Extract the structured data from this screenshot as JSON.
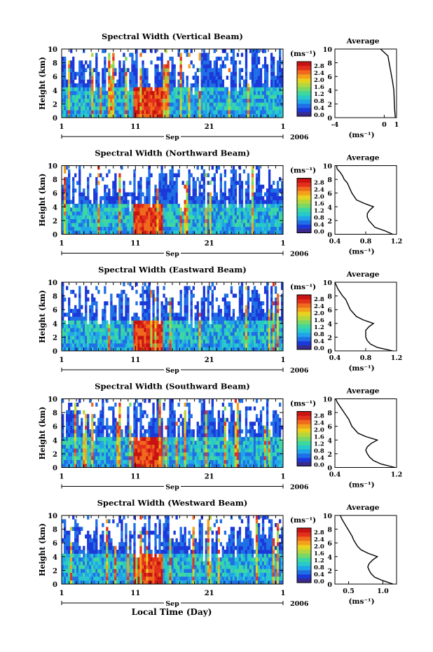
{
  "figure": {
    "xlabel_bottom": "Local Time (Day)"
  },
  "colorbar": {
    "unit_label": "(ms⁻¹)",
    "colors": [
      "#3a2a8c",
      "#1b39d8",
      "#1f6fe6",
      "#21a4e8",
      "#28c9c9",
      "#3ed7a0",
      "#7ad867",
      "#b6d73c",
      "#e8d21f",
      "#f3a11d",
      "#ef6a1d",
      "#e2301d",
      "#c81313"
    ]
  },
  "panels": [
    {
      "title": "Spectral Width (Vertical Beam)",
      "ylabel": "Height (km)",
      "month": "Sep",
      "year": "2006",
      "colorbar_ticks": [
        "0.0",
        "0.4",
        "0.8",
        "1.2",
        "1.6",
        "2.0",
        "2.4",
        "2.8"
      ],
      "avg": {
        "title": "Average",
        "xlabel": "(ms⁻¹)",
        "xticks": [
          "-4",
          "0",
          "1"
        ],
        "xmin": -4,
        "xmax": 1,
        "heights": [
          0,
          1,
          2,
          3,
          4,
          5,
          6,
          7,
          8,
          9,
          10
        ],
        "values": [
          0.9,
          0.85,
          0.82,
          0.8,
          0.78,
          0.7,
          0.6,
          0.5,
          0.4,
          0.3,
          -0.3
        ]
      }
    },
    {
      "title": "Spectral Width (Northward Beam)",
      "ylabel": "Height (km)",
      "month": "Sep",
      "year": "2006",
      "colorbar_ticks": [
        "0.0",
        "0.4",
        "0.8",
        "1.2",
        "1.6",
        "2.0",
        "2.4",
        "2.8"
      ],
      "avg": {
        "title": "Average",
        "xlabel": "(ms⁻¹)",
        "xticks": [
          "0.4",
          "0.8",
          "1.2"
        ],
        "xmin": 0.4,
        "xmax": 1.2,
        "heights": [
          0,
          0.5,
          1,
          1.5,
          2,
          2.5,
          3,
          3.5,
          4,
          4.5,
          5,
          5.5,
          6,
          6.5,
          7,
          7.5,
          8,
          8.5,
          9,
          9.5,
          10
        ],
        "values": [
          1.15,
          1.05,
          0.92,
          0.88,
          0.84,
          0.82,
          0.82,
          0.85,
          0.9,
          0.78,
          0.68,
          0.65,
          0.62,
          0.6,
          0.58,
          0.56,
          0.52,
          0.5,
          0.47,
          0.43,
          0.42
        ]
      }
    },
    {
      "title": "Spectral Width (Eastward Beam)",
      "ylabel": "Height (km)",
      "month": "Sep",
      "year": "2006",
      "colorbar_ticks": [
        "0.0",
        "0.4",
        "0.8",
        "1.2",
        "1.6",
        "2.0",
        "2.4",
        "2.8"
      ],
      "avg": {
        "title": "Average",
        "xlabel": "(ms⁻¹)",
        "xticks": [
          "0.4",
          "0.8",
          "1.2"
        ],
        "xmin": 0.4,
        "xmax": 1.2,
        "heights": [
          0,
          0.5,
          1,
          1.5,
          2,
          2.5,
          3,
          3.5,
          4,
          4.5,
          5,
          5.5,
          6,
          6.5,
          7,
          7.5,
          8,
          8.5,
          9,
          9.5,
          10
        ],
        "values": [
          1.15,
          0.95,
          0.86,
          0.82,
          0.8,
          0.8,
          0.8,
          0.84,
          0.9,
          0.77,
          0.68,
          0.64,
          0.6,
          0.58,
          0.56,
          0.54,
          0.5,
          0.47,
          0.44,
          0.42,
          0.4
        ]
      }
    },
    {
      "title": "Spectral Width (Southward Beam)",
      "ylabel": "Height (km)",
      "month": "Sep",
      "year": "2006",
      "colorbar_ticks": [
        "0.0",
        "0.4",
        "0.8",
        "1.2",
        "1.6",
        "2.0",
        "2.4",
        "2.8"
      ],
      "avg": {
        "title": "Average",
        "xlabel": "(ms⁻¹)",
        "xticks": [
          "0.4",
          "1.2"
        ],
        "xmin": 0.4,
        "xmax": 1.2,
        "heights": [
          0,
          0.5,
          1,
          1.5,
          2,
          2.5,
          3,
          3.5,
          4,
          4.5,
          5,
          5.5,
          6,
          6.5,
          7,
          7.5,
          8,
          8.5,
          9,
          9.5,
          10
        ],
        "values": [
          1.18,
          1.0,
          0.9,
          0.85,
          0.82,
          0.8,
          0.82,
          0.87,
          0.95,
          0.8,
          0.7,
          0.66,
          0.62,
          0.6,
          0.58,
          0.55,
          0.52,
          0.49,
          0.46,
          0.43,
          0.41
        ]
      }
    },
    {
      "title": "Spectral Width (Westward Beam)",
      "ylabel": "Height (km)",
      "month": "Sep",
      "year": "2006",
      "colorbar_ticks": [
        "0.0",
        "0.4",
        "0.8",
        "1.2",
        "1.6",
        "2.0",
        "2.4",
        "2.8"
      ],
      "avg": {
        "title": "Average",
        "xlabel": "(ms⁻¹)",
        "xticks": [
          "0.5",
          "1.0"
        ],
        "xmin": 0.3,
        "xmax": 1.2,
        "heights": [
          0,
          0.5,
          1,
          1.5,
          2,
          2.5,
          3,
          3.5,
          4,
          4.5,
          5,
          5.5,
          6,
          6.5,
          7,
          7.5,
          8,
          8.5,
          9,
          9.5,
          10
        ],
        "values": [
          1.15,
          1.0,
          0.88,
          0.83,
          0.8,
          0.78,
          0.8,
          0.85,
          0.92,
          0.78,
          0.68,
          0.63,
          0.6,
          0.57,
          0.55,
          0.52,
          0.49,
          0.46,
          0.43,
          0.4,
          0.38
        ]
      }
    }
  ],
  "chart_data": {
    "type": "heatmap",
    "x_axis": {
      "ticks": [
        "1",
        "11",
        "21",
        "1"
      ],
      "month": "Sep",
      "year": "2006",
      "label": "Local Time (Day)"
    },
    "y_axis": {
      "label": "Height (km)",
      "ticks": [
        "0",
        "2",
        "4",
        "6",
        "8",
        "10"
      ],
      "ylim": [
        0,
        10
      ]
    },
    "colorbar": {
      "label": "(ms⁻¹)",
      "ticks": [
        "0.0",
        "0.4",
        "0.8",
        "1.2",
        "1.6",
        "2.0",
        "2.4",
        "2.8"
      ],
      "range": [
        0,
        2.8
      ]
    },
    "panels": [
      "Spectral Width (Vertical Beam)",
      "Spectral Width (Northward Beam)",
      "Spectral Width (Eastward Beam)",
      "Spectral Width (Southward Beam)",
      "Spectral Width (Westward Beam)"
    ]
  }
}
